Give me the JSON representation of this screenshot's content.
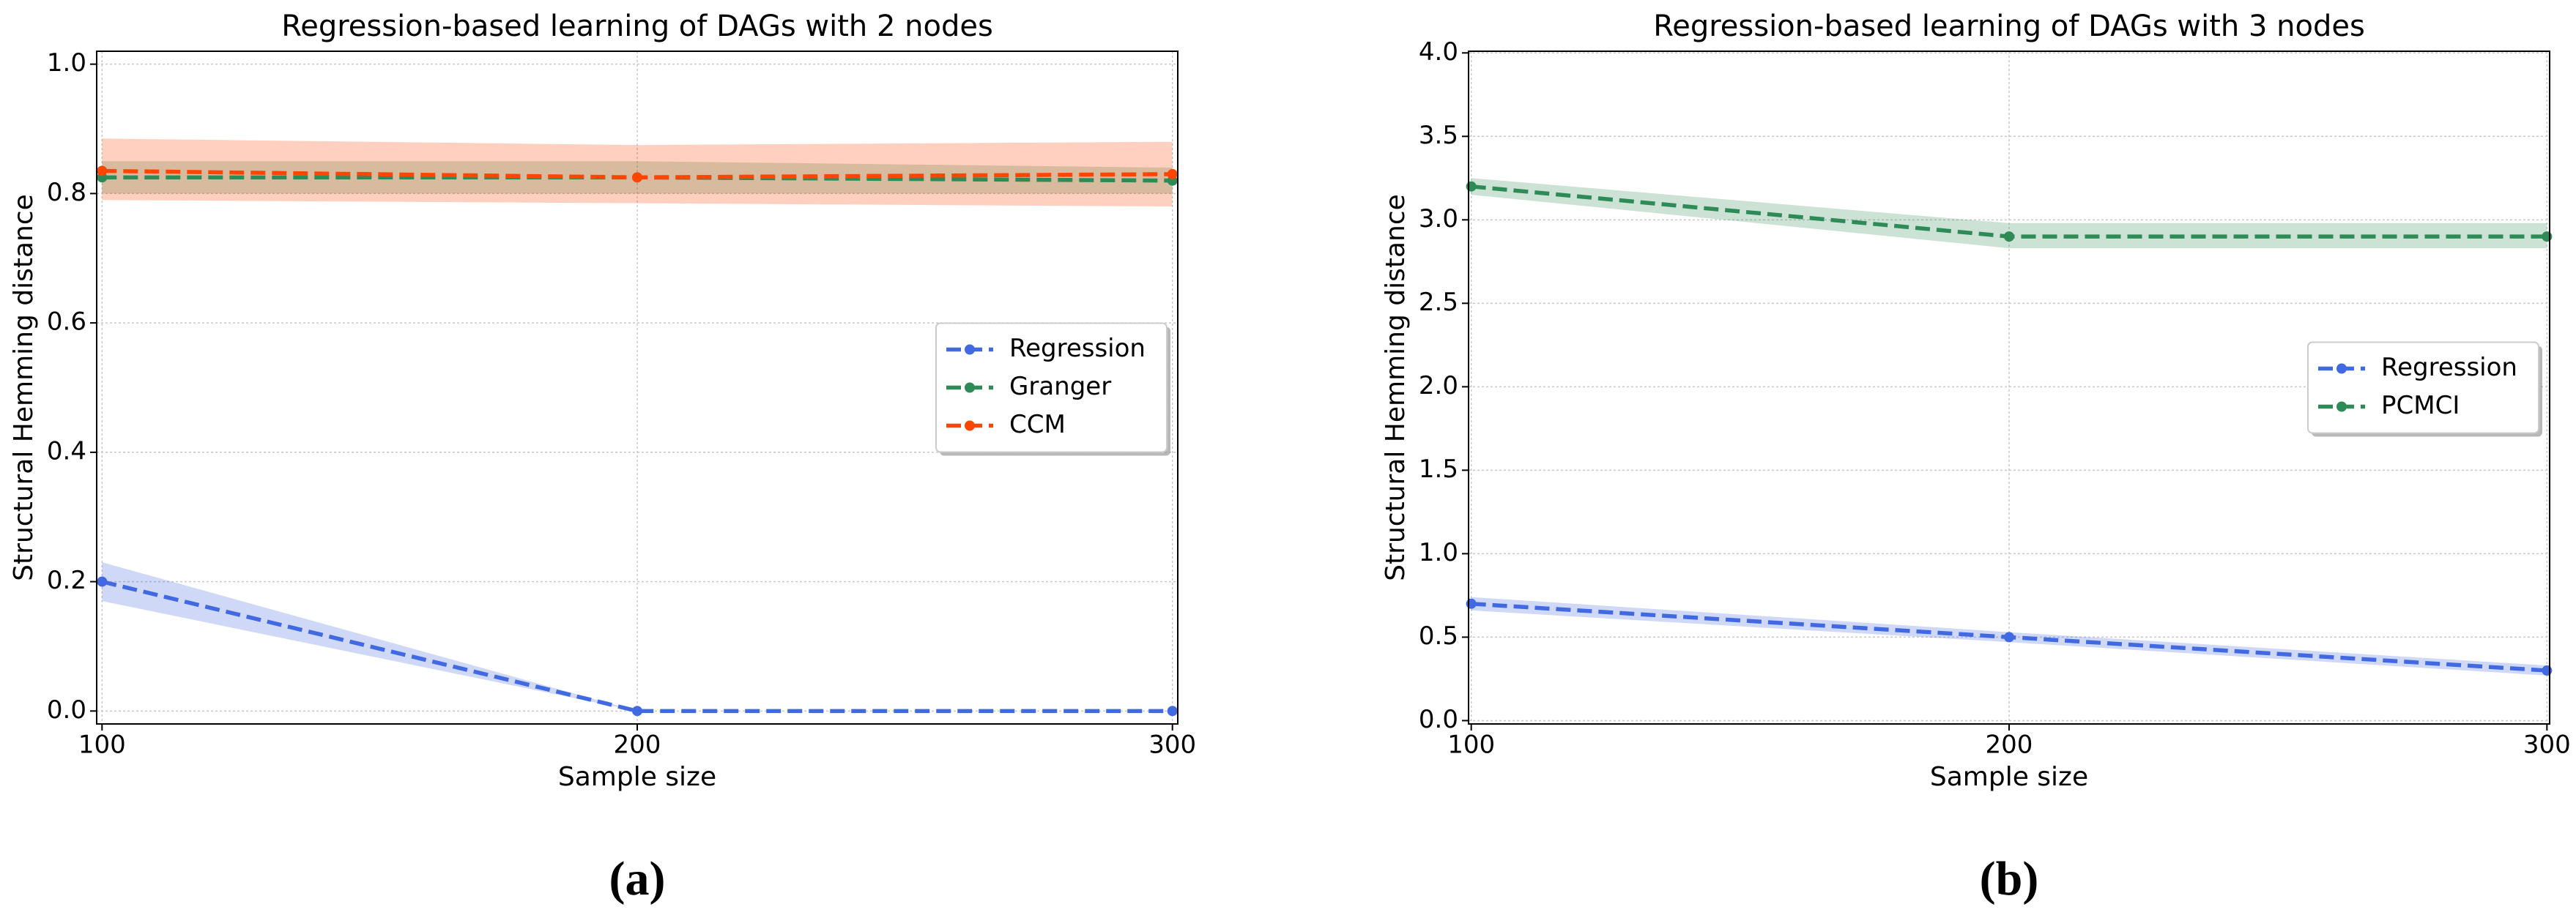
{
  "chart_data": [
    {
      "type": "line",
      "title": "Regression-based learning of DAGs with 2 nodes",
      "x_label": "Sample size",
      "y_label": "Structural Hemming distance",
      "caption": "(a)",
      "x": [
        100,
        200,
        300
      ],
      "xlim": [
        99,
        301
      ],
      "xticks": [
        100,
        200,
        300
      ],
      "ylim": [
        -0.02,
        1.02
      ],
      "yticks": [
        {
          "value": 0,
          "label": "0.0"
        },
        {
          "value": 0.2,
          "label": "0.2"
        },
        {
          "value": 0.4,
          "label": "0.4"
        },
        {
          "value": 0.6,
          "label": "0.6"
        },
        {
          "value": 0.8,
          "label": "0.8"
        },
        {
          "value": 1,
          "label": "1.0"
        }
      ],
      "grid": true,
      "legend": "center right",
      "series": [
        {
          "name": "Regression",
          "color": "#4169e1",
          "values": [
            0.2,
            0,
            0
          ],
          "lower": [
            0.17,
            0,
            0
          ],
          "upper": [
            0.23,
            0,
            0
          ]
        },
        {
          "name": "Granger",
          "color": "#2e8b57",
          "values": [
            0.825,
            0.825,
            0.82
          ],
          "lower": [
            0.8,
            0.8,
            0.8
          ],
          "upper": [
            0.85,
            0.85,
            0.84
          ]
        },
        {
          "name": "CCM",
          "color": "#ff4500",
          "values": [
            0.835,
            0.825,
            0.83
          ],
          "lower": [
            0.79,
            0.785,
            0.78
          ],
          "upper": [
            0.885,
            0.875,
            0.88
          ]
        }
      ]
    },
    {
      "type": "line",
      "title": "Regression-based learning of DAGs with 3 nodes",
      "x_label": "Sample size",
      "y_label": "Structural Hemming distance",
      "caption": "(b)",
      "x": [
        100,
        200,
        300
      ],
      "xlim": [
        99.5,
        300.5
      ],
      "xticks": [
        100,
        200,
        300
      ],
      "ylim": [
        -0.02,
        4.01
      ],
      "yticks": [
        {
          "value": 0,
          "label": "0.0"
        },
        {
          "value": 0.5,
          "label": "0.5"
        },
        {
          "value": 1,
          "label": "1.0"
        },
        {
          "value": 1.5,
          "label": "1.5"
        },
        {
          "value": 2,
          "label": "2.0"
        },
        {
          "value": 2.5,
          "label": "2.5"
        },
        {
          "value": 3,
          "label": "3.0"
        },
        {
          "value": 3.5,
          "label": "3.5"
        },
        {
          "value": 4,
          "label": "4.0"
        }
      ],
      "grid": true,
      "legend": "center right",
      "series": [
        {
          "name": "Regression",
          "color": "#4169e1",
          "values": [
            0.7,
            0.5,
            0.3
          ],
          "lower": [
            0.66,
            0.47,
            0.27
          ],
          "upper": [
            0.74,
            0.53,
            0.33
          ]
        },
        {
          "name": "PCMCI",
          "color": "#2e8b57",
          "values": [
            3.2,
            2.9,
            2.9
          ],
          "lower": [
            3.15,
            2.83,
            2.83
          ],
          "upper": [
            3.25,
            2.98,
            2.98
          ]
        }
      ]
    }
  ]
}
